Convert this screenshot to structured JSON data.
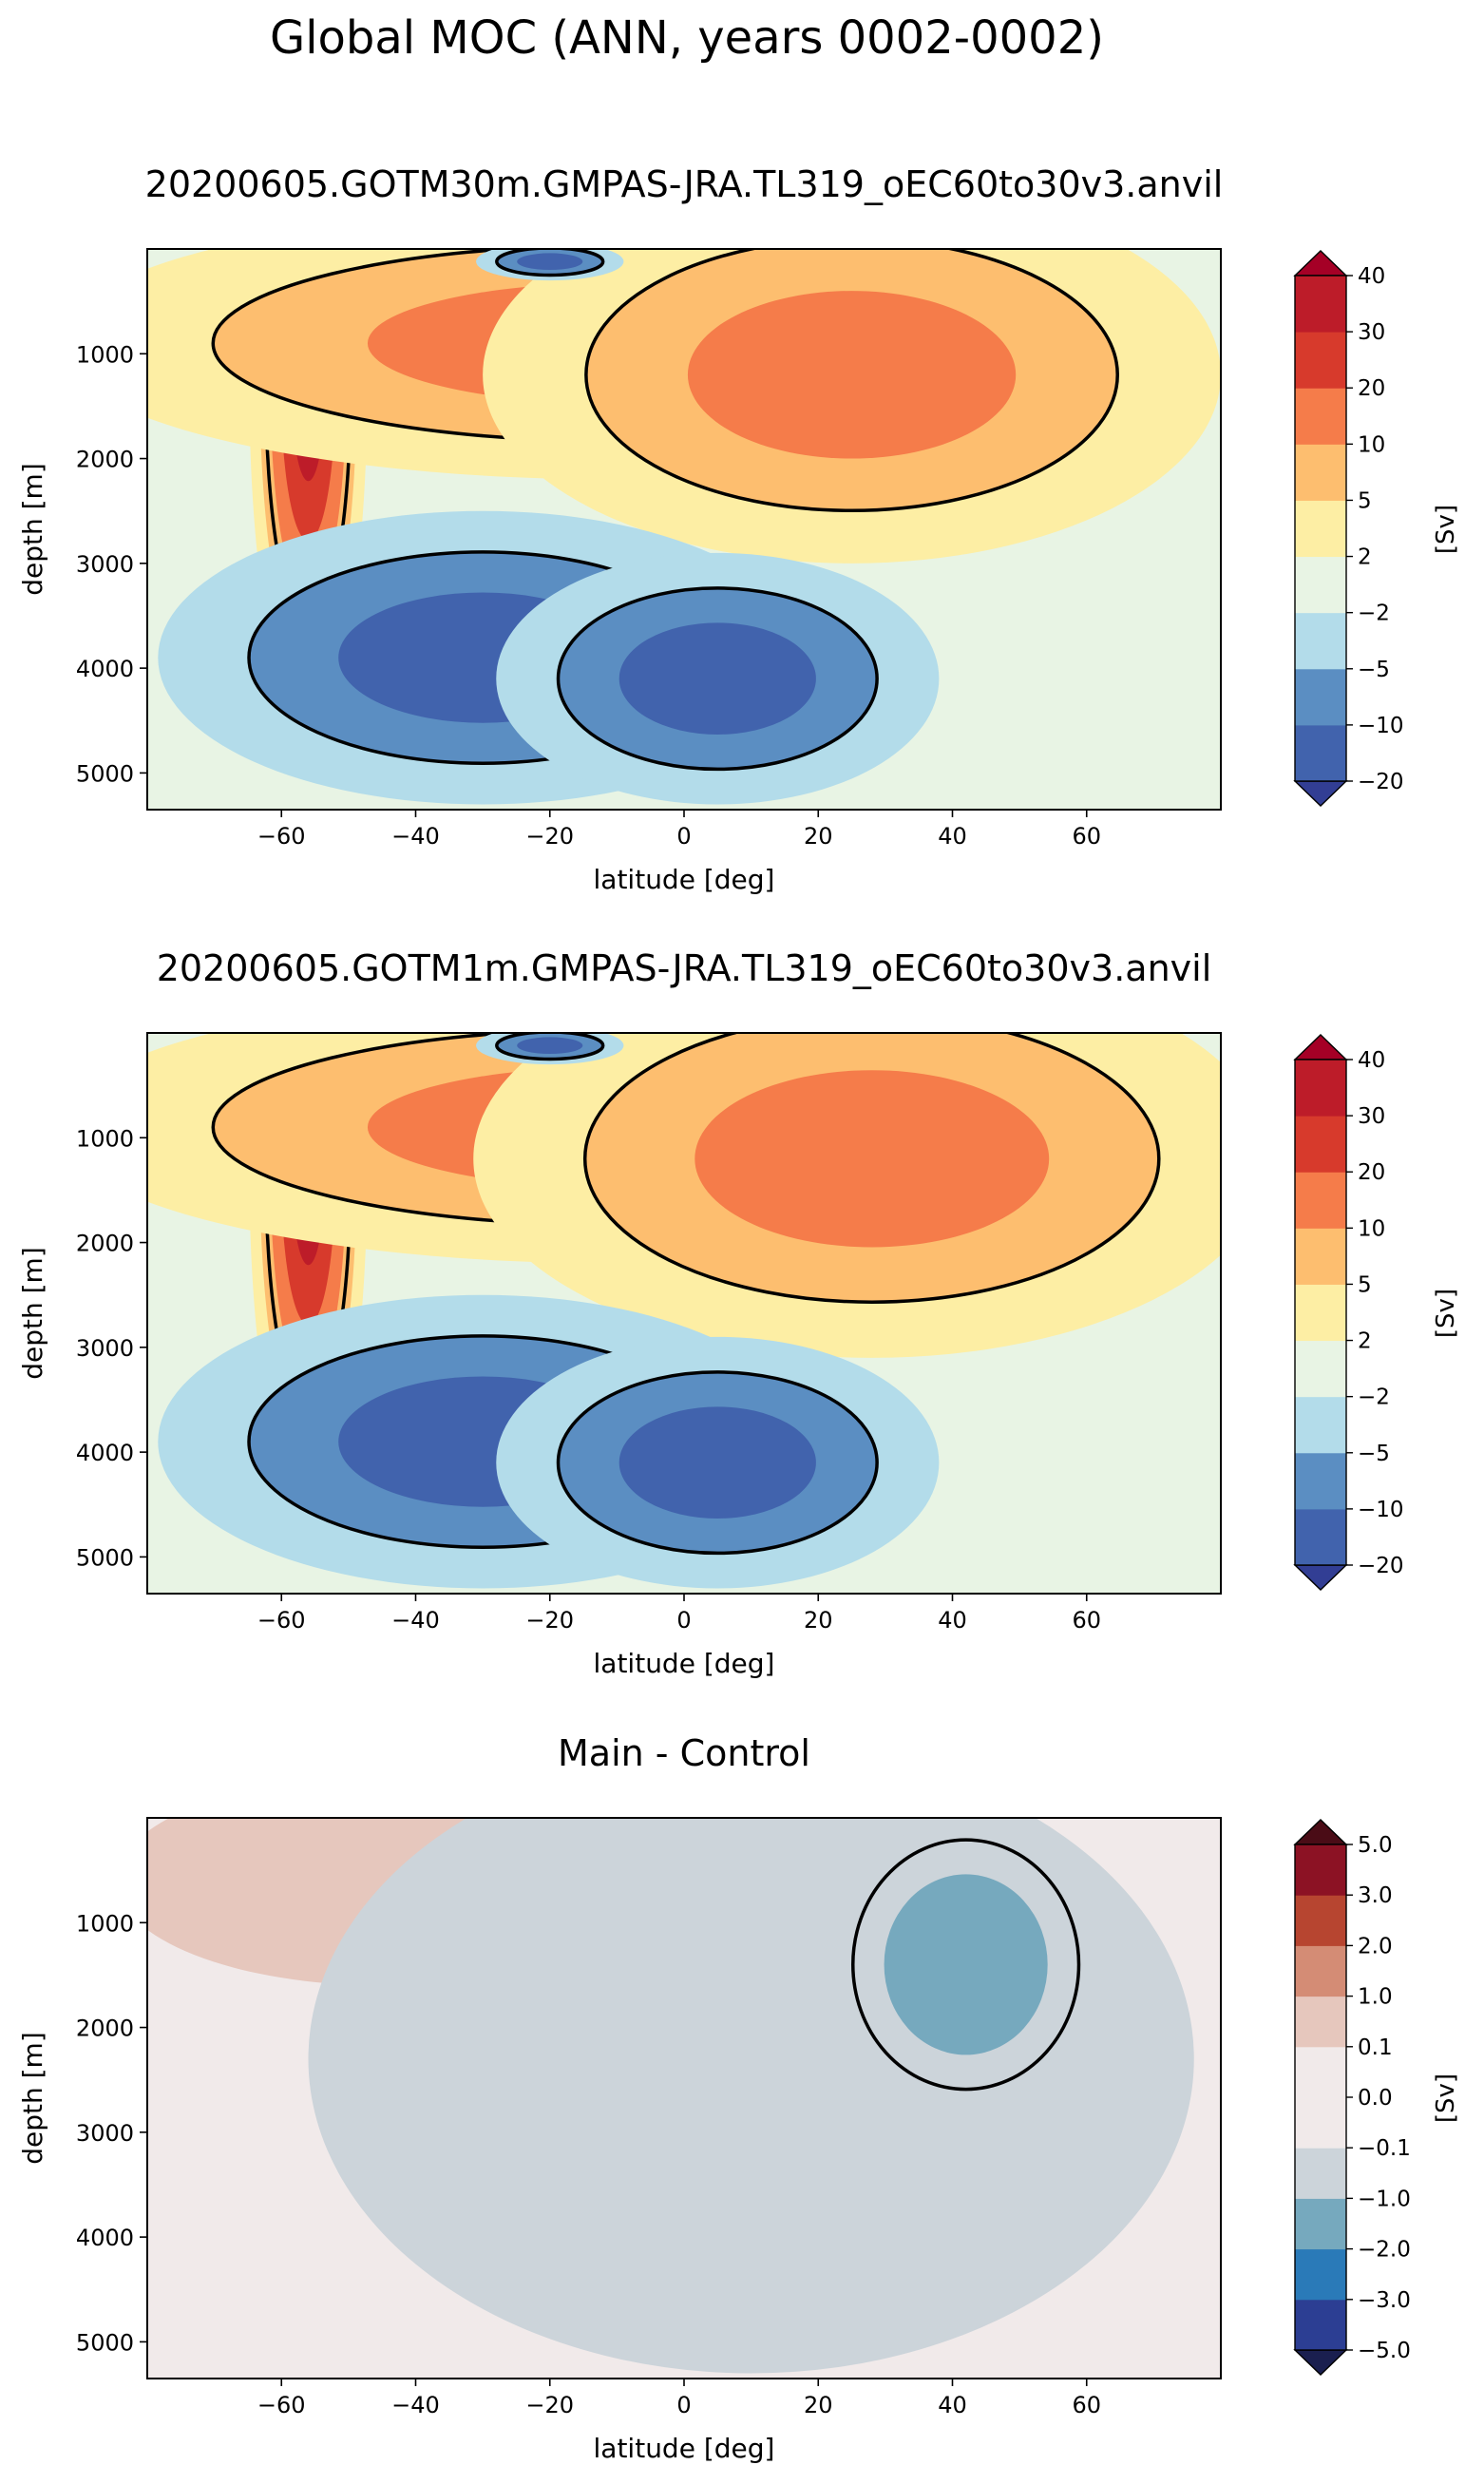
{
  "figure_title": "Global MOC (ANN, years 0002-0002)",
  "chart_data": [
    {
      "type": "contourf",
      "title": "20200605.GOTM30m.GMPAS-JRA.TL319_oEC60to30v3.anvil",
      "xlabel": "latitude [deg]",
      "ylabel": "depth [m]",
      "xlim": [
        -80,
        80
      ],
      "ylim": [
        5350,
        0
      ],
      "xticks": [
        -60,
        -40,
        -20,
        0,
        20,
        40,
        60
      ],
      "xtick_labels": [
        "−60",
        "−40",
        "−20",
        "0",
        "20",
        "40",
        "60"
      ],
      "yticks": [
        1000,
        2000,
        3000,
        4000,
        5000
      ],
      "ytick_labels": [
        "1000",
        "2000",
        "3000",
        "4000",
        "5000"
      ],
      "colorbar_label": "[Sv]",
      "colorbar_levels": [
        "−20",
        "−10",
        "−5",
        "−2",
        "2",
        "5",
        "10",
        "20",
        "30",
        "40"
      ],
      "colorbar_colors": [
        "#4163ad",
        "#5b8ec2",
        "#b3dcea",
        "#e8f4e4",
        "#fdeea4",
        "#fdbe6f",
        "#f57c4a",
        "#d73a2c",
        "#bd1c29"
      ],
      "extend_low_color": "#323e94",
      "extend_high_color": "#a50026",
      "background_color": "#e8f4e4",
      "fields": [
        {
          "kind": "pos",
          "cx": -56,
          "cy": 1300,
          "sx": 4,
          "sy": 1600,
          "amp": 30
        },
        {
          "kind": "pos",
          "cx": -10,
          "cy": 900,
          "sx": 38,
          "sy": 650,
          "amp": 10
        },
        {
          "kind": "pos",
          "cx": 25,
          "cy": 1200,
          "sx": 25,
          "sy": 900,
          "amp": 12
        },
        {
          "kind": "neg",
          "cx": -30,
          "cy": 3900,
          "sx": 22,
          "sy": 700,
          "amp": -16
        },
        {
          "kind": "neg",
          "cx": 5,
          "cy": 4100,
          "sx": 15,
          "sy": 600,
          "amp": -12
        },
        {
          "kind": "neg",
          "cx": -20,
          "cy": 120,
          "sx": 5,
          "sy": 90,
          "amp": -24
        }
      ]
    },
    {
      "type": "contourf",
      "title": "20200605.GOTM1m.GMPAS-JRA.TL319_oEC60to30v3.anvil",
      "xlabel": "latitude [deg]",
      "ylabel": "depth [m]",
      "xlim": [
        -80,
        80
      ],
      "ylim": [
        5350,
        0
      ],
      "xticks": [
        -60,
        -40,
        -20,
        0,
        20,
        40,
        60
      ],
      "xtick_labels": [
        "−60",
        "−40",
        "−20",
        "0",
        "20",
        "40",
        "60"
      ],
      "yticks": [
        1000,
        2000,
        3000,
        4000,
        5000
      ],
      "ytick_labels": [
        "1000",
        "2000",
        "3000",
        "4000",
        "5000"
      ],
      "colorbar_label": "[Sv]",
      "colorbar_levels": [
        "−20",
        "−10",
        "−5",
        "−2",
        "2",
        "5",
        "10",
        "20",
        "30",
        "40"
      ],
      "colorbar_colors": [
        "#4163ad",
        "#5b8ec2",
        "#b3dcea",
        "#e8f4e4",
        "#fdeea4",
        "#fdbe6f",
        "#f57c4a",
        "#d73a2c",
        "#bd1c29"
      ],
      "extend_low_color": "#323e94",
      "extend_high_color": "#a50026",
      "background_color": "#e8f4e4",
      "fields": [
        {
          "kind": "pos",
          "cx": -56,
          "cy": 1300,
          "sx": 4,
          "sy": 1600,
          "amp": 30
        },
        {
          "kind": "pos",
          "cx": -10,
          "cy": 900,
          "sx": 38,
          "sy": 650,
          "amp": 10
        },
        {
          "kind": "pos",
          "cx": 28,
          "cy": 1200,
          "sx": 27,
          "sy": 950,
          "amp": 13
        },
        {
          "kind": "neg",
          "cx": -30,
          "cy": 3900,
          "sx": 22,
          "sy": 700,
          "amp": -16
        },
        {
          "kind": "neg",
          "cx": 5,
          "cy": 4100,
          "sx": 15,
          "sy": 600,
          "amp": -12
        },
        {
          "kind": "neg",
          "cx": -20,
          "cy": 120,
          "sx": 5,
          "sy": 90,
          "amp": -24
        }
      ]
    },
    {
      "type": "contourf",
      "title": "Main - Control",
      "xlabel": "latitude [deg]",
      "ylabel": "depth [m]",
      "xlim": [
        -80,
        80
      ],
      "ylim": [
        5350,
        0
      ],
      "xticks": [
        -60,
        -40,
        -20,
        0,
        20,
        40,
        60
      ],
      "xtick_labels": [
        "−60",
        "−40",
        "−20",
        "0",
        "20",
        "40",
        "60"
      ],
      "yticks": [
        1000,
        2000,
        3000,
        4000,
        5000
      ],
      "ytick_labels": [
        "1000",
        "2000",
        "3000",
        "4000",
        "5000"
      ],
      "colorbar_label": "[Sv]",
      "colorbar_levels": [
        "−5.0",
        "−3.0",
        "−2.0",
        "−1.0",
        "−0.1",
        "0.0",
        "0.1",
        "1.0",
        "2.0",
        "3.0",
        "5.0"
      ],
      "colorbar_colors": [
        "#2c3e93",
        "#2a7ab8",
        "#76a9be",
        "#ccd4da",
        "#f1eaea",
        "#f1eaea",
        "#e6c7bd",
        "#d48c75",
        "#b74530",
        "#8c1224"
      ],
      "extend_low_color": "#1a1f4f",
      "extend_high_color": "#4a0c16",
      "background_color": "#f1eaea",
      "fields": [
        {
          "kind": "diff-pos",
          "cx": -45,
          "cy": 600,
          "sx": 18,
          "sy": 500,
          "amp": 0.5
        },
        {
          "kind": "diff-neg",
          "cx": 10,
          "cy": 2300,
          "sx": 30,
          "sy": 1500,
          "amp": -0.5
        },
        {
          "kind": "diff-neg",
          "cx": 42,
          "cy": 1400,
          "sx": 9,
          "sy": 700,
          "amp": -1.6
        }
      ]
    }
  ]
}
